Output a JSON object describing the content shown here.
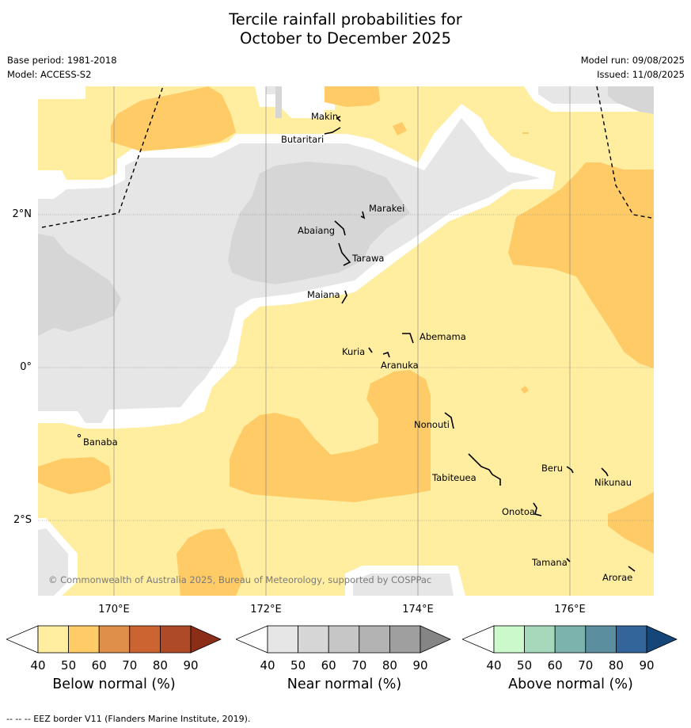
{
  "title": {
    "line1": "Tercile rainfall probabilities for",
    "line2": "October to December 2025"
  },
  "meta": {
    "base_period": "Base period: 1981-2018",
    "model": "Model: ACCESS-S2",
    "model_run": "Model run: 09/08/2025",
    "issued": "Issued: 11/08/2025"
  },
  "map": {
    "lon_labels": [
      "170°E",
      "172°E",
      "174°E",
      "176°E"
    ],
    "lat_labels": [
      "2°N",
      "0°",
      "2°S"
    ],
    "copyright": "© Commonwealth of Australia 2025, Bureau of Meteorology, supported by COSPPac",
    "places": [
      "Makin",
      "Butaritari",
      "Marakei",
      "Abaiang",
      "Tarawa",
      "Maiana",
      "Abemama",
      "Kuria",
      "Aranuka",
      "Nonouti",
      "Banaba",
      "Tabiteuea",
      "Beru",
      "Nikunau",
      "Onotoa",
      "Tamana",
      "Arorae"
    ],
    "category_colors": {
      "below_50": "#ffeda0",
      "below_60": "#fecb67",
      "near_40": "#e6e6e6",
      "near_50": "#d6d6d6"
    }
  },
  "legend": {
    "ticks": [
      "40",
      "50",
      "60",
      "70",
      "80",
      "90"
    ],
    "below": {
      "title": "Below normal (%)",
      "colors": [
        "#ffeda0",
        "#fecb67",
        "#e08f4a",
        "#cc6432",
        "#ae4a28",
        "#8c2d18"
      ]
    },
    "near": {
      "title": "Near normal (%)",
      "colors": [
        "#e6e6e6",
        "#d6d6d6",
        "#c6c6c6",
        "#b3b3b3",
        "#9f9f9f",
        "#858585"
      ]
    },
    "above": {
      "title": "Above normal (%)",
      "colors": [
        "#ccf9cc",
        "#a6d8bc",
        "#7cb3ad",
        "#5b8f9f",
        "#33649a",
        "#14467a"
      ]
    }
  },
  "footnote": "--  --  -- EEZ border V11 (Flanders Marine Institute, 2019)."
}
